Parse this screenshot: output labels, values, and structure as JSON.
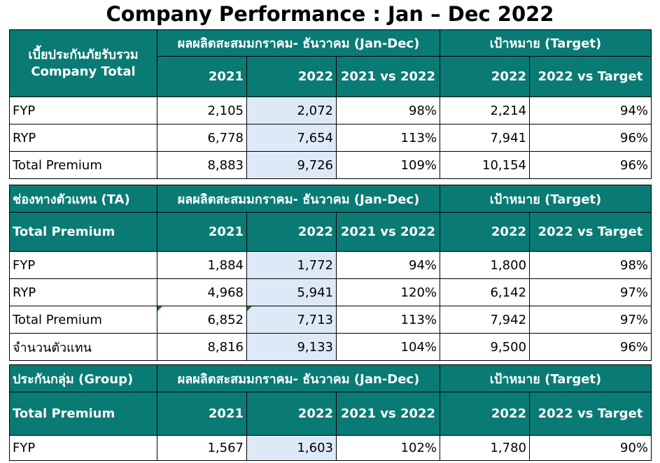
{
  "title": "Company Performance : Jan – Dec 2022",
  "tables": [
    {
      "label_line1": "เบี้ยประกันภัยรับรวม",
      "label_line2": "Company Total",
      "group_actual": "ผลผลิตสะสมมกราคม- ธันวาคม (Jan-Dec)",
      "group_target": "เป้าหมาย (Target)",
      "col_2021": "2021",
      "col_2022": "2022",
      "col_vs": "2021 vs 2022",
      "col_target": "2022",
      "col_vs_target": "2022 vs Target",
      "rows": [
        {
          "label": "FYP",
          "v2021": "2,105",
          "v2022": "2,072",
          "vs": "98%",
          "target": "2,214",
          "vs_target": "94%"
        },
        {
          "label": "RYP",
          "v2021": "6,778",
          "v2022": "7,654",
          "vs": "113%",
          "target": "7,941",
          "vs_target": "96%"
        },
        {
          "label": "Total Premium",
          "v2021": "8,883",
          "v2022": "9,726",
          "vs": "109%",
          "target": "10,154",
          "vs_target": "96%"
        }
      ]
    },
    {
      "label_line1": "ช่องทางตัวแทน (TA)",
      "label_line2": "Total Premium",
      "group_actual": "ผลผลิตสะสมมกราคม- ธันวาคม (Jan-Dec)",
      "group_target": "เป้าหมาย (Target)",
      "col_2021": "2021",
      "col_2022": "2022",
      "col_vs": "2021 vs 2022",
      "col_target": "2022",
      "col_vs_target": "2022 vs Target",
      "rows": [
        {
          "label": "FYP",
          "v2021": "1,884",
          "v2022": "1,772",
          "vs": "94%",
          "target": "1,800",
          "vs_target": "98%"
        },
        {
          "label": "RYP",
          "v2021": "4,968",
          "v2022": "5,941",
          "vs": "120%",
          "target": "6,142",
          "vs_target": "97%"
        },
        {
          "label": "Total Premium",
          "v2021": "6,852",
          "v2022": "7,713",
          "vs": "113%",
          "target": "7,942",
          "vs_target": "97%"
        },
        {
          "label": "จำนวนตัวแทน",
          "v2021": "8,816",
          "v2022": "9,133",
          "vs": "104%",
          "target": "9,500",
          "vs_target": "96%"
        }
      ]
    },
    {
      "label_line1": "ประกันกลุ่ม (Group)",
      "label_line2": "Total Premium",
      "group_actual": "ผลผลิตสะสมมกราคม- ธันวาคม (Jan-Dec)",
      "group_target": "เป้าหมาย (Target)",
      "col_2021": "2021",
      "col_2022": "2022",
      "col_vs": "2021 vs 2022",
      "col_target": "2022",
      "col_vs_target": "2022 vs Target",
      "rows": [
        {
          "label": "FYP",
          "v2021": "1,567",
          "v2022": "1,603",
          "vs": "102%",
          "target": "1,780",
          "vs_target": "90%"
        }
      ]
    }
  ],
  "colors": {
    "header_bg": "#0a7a74",
    "highlight_bg": "#dde9f6",
    "marker": "#1e7a28"
  }
}
